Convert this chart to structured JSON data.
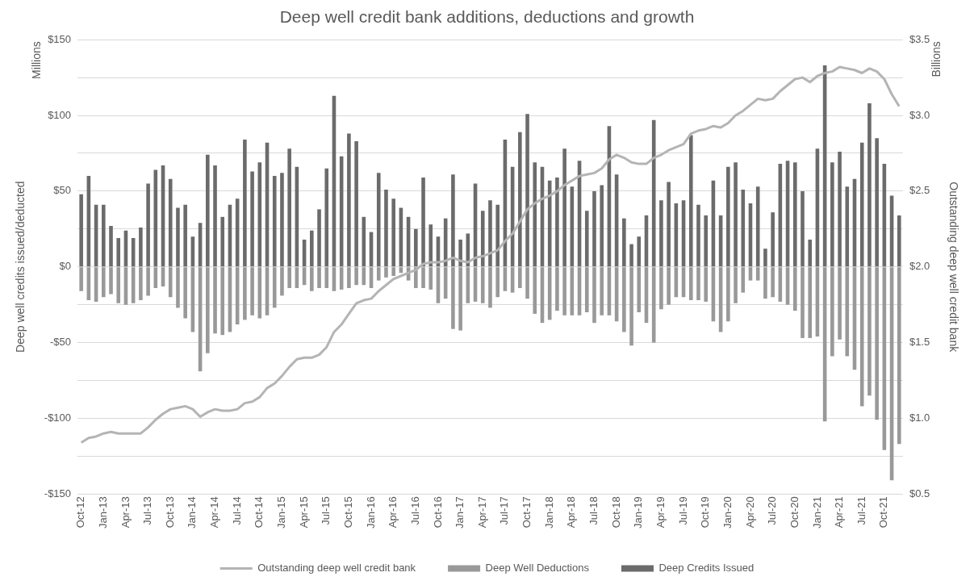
{
  "chart_data": {
    "type": "bar",
    "title": "Deep well credit bank additions, deductions and growth",
    "ylabel": "Deep well credits issued/deducted",
    "y2label": "Outstanding deep well credit bank",
    "annotations": [
      "Millions",
      "Billions"
    ],
    "categories": [
      "Oct-12",
      null,
      null,
      "Jan-13",
      null,
      null,
      "Apr-13",
      null,
      null,
      "Jul-13",
      null,
      null,
      "Oct-13",
      null,
      null,
      "Jan-14",
      null,
      null,
      "Apr-14",
      null,
      null,
      "Jul-14",
      null,
      null,
      "Oct-14",
      null,
      null,
      "Jan-15",
      null,
      null,
      "Apr-15",
      null,
      null,
      "Jul-15",
      null,
      null,
      "Oct-15",
      null,
      null,
      "Jan-16",
      null,
      null,
      "Apr-16",
      null,
      null,
      "Jul-16",
      null,
      null,
      "Oct-16",
      null,
      null,
      "Jan-17",
      null,
      null,
      "Apr-17",
      null,
      null,
      "Jul-17",
      null,
      null,
      "Oct-17",
      null,
      null,
      "Jan-18",
      null,
      null,
      "Apr-18",
      null,
      null,
      "Jul-18",
      null,
      null,
      "Oct-18",
      null,
      null,
      "Jan-19",
      null,
      null,
      "Apr-19",
      null,
      null,
      "Jul-19",
      null,
      null,
      "Oct-19",
      null,
      null,
      "Jan-20",
      null,
      null,
      "Apr-20",
      null,
      null,
      "Jul-20",
      null,
      null,
      "Oct-20",
      null,
      null,
      "Jan-21",
      null,
      null,
      "Apr-21",
      null,
      null,
      "Jul-21",
      null,
      null,
      "Oct-21",
      null,
      null
    ],
    "stacked": true,
    "grid": "y",
    "legend": "bottom",
    "ylim": [
      -150,
      150
    ],
    "yticks": [
      {
        "value": -150,
        "label": "-$150"
      },
      {
        "value": -125,
        "label": null
      },
      {
        "value": -100,
        "label": "-$100"
      },
      {
        "value": -75,
        "label": null
      },
      {
        "value": -50,
        "label": "-$50"
      },
      {
        "value": -25,
        "label": null
      },
      {
        "value": 0,
        "label": "$0"
      },
      {
        "value": 25,
        "label": null
      },
      {
        "value": 50,
        "label": "$50"
      },
      {
        "value": 75,
        "label": null
      },
      {
        "value": 100,
        "label": "$100"
      },
      {
        "value": 125,
        "label": null
      },
      {
        "value": 150,
        "label": "$150"
      }
    ],
    "y2lim": [
      0.5,
      3.5
    ],
    "y2ticks": [
      {
        "value": 0.5,
        "label": "$0.5"
      },
      {
        "value": 1.0,
        "label": "$1.0"
      },
      {
        "value": 1.5,
        "label": "$1.5"
      },
      {
        "value": 2.0,
        "label": "$2.0"
      },
      {
        "value": 2.5,
        "label": "$2.5"
      },
      {
        "value": 3.0,
        "label": "$3.0"
      },
      {
        "value": 3.5,
        "label": "$3.5"
      }
    ],
    "series": [
      {
        "name": "Deep Well Deductions",
        "color": "#999999",
        "values": [
          -16,
          -22,
          -23,
          -20,
          -18,
          -24,
          -25,
          -24,
          -22,
          -19,
          -14,
          -13,
          -20,
          -27,
          -34,
          -43,
          -69,
          -57,
          -44,
          -45,
          -43,
          -38,
          -35,
          -32,
          -34,
          -32,
          -27,
          -19,
          -14,
          -14,
          -12,
          -16,
          -14,
          -14,
          -16,
          -15,
          -14,
          -12,
          -12,
          -14,
          -9,
          -7,
          -6,
          -4,
          -9,
          -14,
          -14,
          -15,
          -24,
          -21,
          -41,
          -42,
          -24,
          -23,
          -24,
          -27,
          -20,
          -16,
          -17,
          -14,
          -21,
          -31,
          -37,
          -35,
          -29,
          -32,
          -32,
          -32,
          -30,
          -37,
          -32,
          -32,
          -36,
          -43,
          -52,
          -30,
          -37,
          -50,
          -28,
          -25,
          -20,
          -20,
          -22,
          -22,
          -23,
          -36,
          -43,
          -36,
          -24,
          -17,
          -9,
          -9,
          -21,
          -20,
          -23,
          -25,
          -29,
          -47,
          -47,
          -46,
          -102,
          -59,
          -48,
          -59,
          -68,
          -92,
          -85,
          -101,
          -121,
          -141,
          -117
        ]
      },
      {
        "name": "Deep Credits Issued",
        "color": "#6b6b6b",
        "values": [
          48,
          60,
          41,
          41,
          27,
          19,
          24,
          19,
          26,
          55,
          64,
          67,
          58,
          39,
          41,
          20,
          29,
          74,
          67,
          33,
          41,
          45,
          84,
          63,
          69,
          82,
          60,
          62,
          78,
          66,
          18,
          24,
          38,
          65,
          113,
          73,
          88,
          83,
          33,
          23,
          62,
          51,
          45,
          39,
          33,
          25,
          59,
          28,
          20,
          32,
          61,
          18,
          22,
          55,
          37,
          44,
          41,
          84,
          66,
          89,
          101,
          69,
          66,
          57,
          59,
          78,
          53,
          70,
          37,
          50,
          54,
          93,
          61,
          32,
          15,
          20,
          34,
          97,
          44,
          56,
          42,
          44,
          87,
          41,
          34,
          57,
          34,
          66,
          69,
          51,
          42,
          53,
          12,
          36,
          68,
          70,
          69,
          50,
          18,
          78,
          133,
          69,
          76,
          53,
          58,
          82,
          108,
          85,
          68,
          47,
          34
        ]
      },
      {
        "name": "Outstanding deep well credit bank",
        "type": "line",
        "axis": "y2",
        "color": "#b4b4b4",
        "values": [
          0.84,
          0.87,
          0.88,
          0.9,
          0.91,
          0.9,
          0.9,
          0.9,
          0.9,
          0.94,
          0.99,
          1.03,
          1.06,
          1.07,
          1.08,
          1.06,
          1.01,
          1.04,
          1.06,
          1.05,
          1.05,
          1.06,
          1.1,
          1.11,
          1.14,
          1.2,
          1.23,
          1.28,
          1.34,
          1.39,
          1.4,
          1.4,
          1.42,
          1.47,
          1.57,
          1.62,
          1.69,
          1.76,
          1.78,
          1.79,
          1.84,
          1.88,
          1.92,
          1.94,
          1.96,
          1.98,
          2.02,
          2.03,
          2.03,
          2.04,
          2.06,
          2.04,
          2.03,
          2.06,
          2.07,
          2.09,
          2.11,
          2.17,
          2.22,
          2.3,
          2.38,
          2.42,
          2.45,
          2.47,
          2.5,
          2.54,
          2.57,
          2.6,
          2.61,
          2.62,
          2.65,
          2.71,
          2.74,
          2.72,
          2.69,
          2.68,
          2.68,
          2.72,
          2.74,
          2.77,
          2.79,
          2.81,
          2.88,
          2.9,
          2.91,
          2.93,
          2.92,
          2.95,
          3.0,
          3.03,
          3.07,
          3.11,
          3.1,
          3.11,
          3.16,
          3.2,
          3.24,
          3.25,
          3.22,
          3.26,
          3.28,
          3.29,
          3.32,
          3.31,
          3.3,
          3.28,
          3.31,
          3.29,
          3.24,
          3.14,
          3.06
        ]
      }
    ]
  }
}
